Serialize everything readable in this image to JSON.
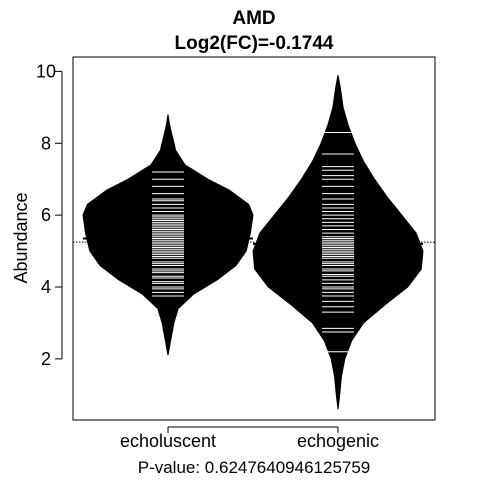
{
  "chart_data": {
    "type": "beanplot",
    "title": "AMD",
    "subtitle": "Log2(FC)=-0.1744",
    "ylabel": "Abundance",
    "xlabel": "",
    "ylim": [
      0.3,
      10.4
    ],
    "yticks": [
      2,
      4,
      6,
      8,
      10
    ],
    "categories": [
      "echoluscent",
      "echogenic"
    ],
    "overall_mean": 5.25,
    "footer": "P-value: 0.6247640946125759",
    "grid": false,
    "legend": "none",
    "series": [
      {
        "category": "echoluscent",
        "mean": 5.35,
        "range": [
          2.1,
          8.8
        ],
        "density": [
          [
            2.1,
            0.0
          ],
          [
            2.5,
            0.03
          ],
          [
            3.0,
            0.07
          ],
          [
            3.4,
            0.12
          ],
          [
            3.8,
            0.3
          ],
          [
            4.2,
            0.58
          ],
          [
            4.6,
            0.8
          ],
          [
            5.0,
            0.92
          ],
          [
            5.5,
            0.97
          ],
          [
            6.0,
            1.0
          ],
          [
            6.3,
            0.95
          ],
          [
            6.7,
            0.72
          ],
          [
            7.0,
            0.47
          ],
          [
            7.4,
            0.2
          ],
          [
            7.8,
            0.09
          ],
          [
            8.2,
            0.05
          ],
          [
            8.5,
            0.02
          ],
          [
            8.8,
            0.0
          ]
        ],
        "points": [
          3.75,
          3.85,
          3.95,
          4.0,
          4.1,
          4.15,
          4.25,
          4.3,
          4.4,
          4.45,
          4.5,
          4.6,
          4.65,
          4.7,
          4.8,
          4.85,
          4.9,
          4.95,
          5.0,
          5.05,
          5.1,
          5.15,
          5.2,
          5.25,
          5.3,
          5.35,
          5.4,
          5.45,
          5.5,
          5.55,
          5.6,
          5.65,
          5.7,
          5.75,
          5.8,
          5.85,
          5.9,
          5.95,
          6.0,
          6.1,
          6.2,
          6.3,
          6.4,
          6.45,
          6.6,
          6.8,
          7.0,
          7.2
        ]
      },
      {
        "category": "echogenic",
        "mean": 5.2,
        "range": [
          0.6,
          9.9
        ],
        "density": [
          [
            0.6,
            0.0
          ],
          [
            1.0,
            0.02
          ],
          [
            1.5,
            0.04
          ],
          [
            2.0,
            0.08
          ],
          [
            2.5,
            0.16
          ],
          [
            3.0,
            0.3
          ],
          [
            3.5,
            0.55
          ],
          [
            4.0,
            0.82
          ],
          [
            4.5,
            0.98
          ],
          [
            5.0,
            1.0
          ],
          [
            5.5,
            0.92
          ],
          [
            6.0,
            0.75
          ],
          [
            6.5,
            0.58
          ],
          [
            7.0,
            0.43
          ],
          [
            7.5,
            0.3
          ],
          [
            8.0,
            0.2
          ],
          [
            8.5,
            0.12
          ],
          [
            9.0,
            0.06
          ],
          [
            9.5,
            0.03
          ],
          [
            9.9,
            0.0
          ]
        ],
        "points": [
          2.2,
          2.75,
          2.85,
          3.3,
          3.45,
          3.6,
          3.75,
          3.85,
          3.95,
          4.0,
          4.1,
          4.2,
          4.3,
          4.35,
          4.45,
          4.5,
          4.6,
          4.65,
          4.7,
          4.8,
          4.85,
          4.9,
          4.95,
          5.0,
          5.05,
          5.1,
          5.15,
          5.2,
          5.25,
          5.3,
          5.35,
          5.4,
          5.5,
          5.6,
          5.7,
          5.8,
          5.9,
          6.0,
          6.1,
          6.2,
          6.3,
          6.45,
          6.6,
          6.8,
          7.0,
          7.1,
          7.25,
          7.35,
          7.7,
          8.3
        ]
      }
    ]
  }
}
